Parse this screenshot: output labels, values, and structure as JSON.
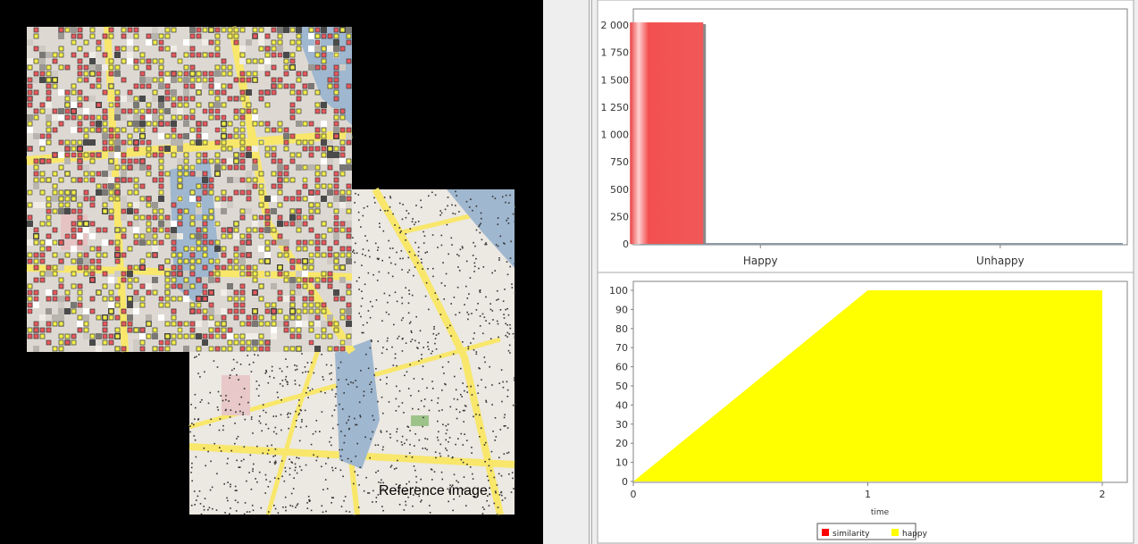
{
  "simulation_view": {
    "reference_label": "Reference image:"
  },
  "colors": {
    "agent_red": "#e8585c",
    "agent_yellow": "#f2ee4a",
    "map_bg": "#ece8e2",
    "road": "#f8e76a",
    "water": "#9fb7cf",
    "bar_red": "#f25050",
    "area_yellow": "#ffff00"
  },
  "chart_data": [
    {
      "type": "bar",
      "categories": [
        "Happy",
        "Unhappy"
      ],
      "values": [
        2025,
        0
      ],
      "ylim": [
        0,
        2050
      ],
      "yticks": [
        "0",
        "250",
        "500",
        "750",
        "1 000",
        "1 250",
        "1 500",
        "1 750",
        "2 000"
      ],
      "grid": false
    },
    {
      "type": "area",
      "x": [
        0,
        1,
        2
      ],
      "series": [
        {
          "name": "happy",
          "values": [
            0,
            100,
            100
          ]
        }
      ],
      "xlabel": "time",
      "ylim": [
        0,
        100
      ],
      "xticks": [
        "0",
        "1",
        "2"
      ],
      "yticks": [
        "0",
        "10",
        "20",
        "30",
        "40",
        "50",
        "60",
        "70",
        "80",
        "90",
        "100"
      ],
      "legend": [
        {
          "name": "similarity",
          "color": "#ff0000"
        },
        {
          "name": "happy",
          "color": "#ffff00"
        }
      ],
      "legend_position": "bottom"
    }
  ]
}
